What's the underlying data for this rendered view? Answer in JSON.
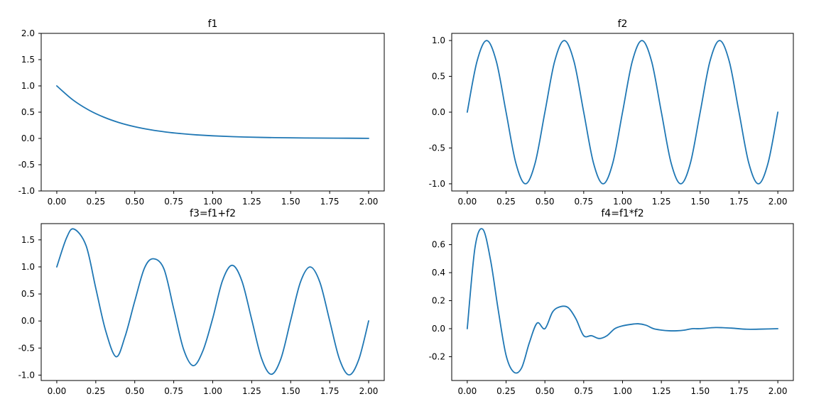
{
  "chart_data": [
    {
      "type": "line",
      "title": "f1",
      "xlabel": "",
      "ylabel": "",
      "xlim": [
        -0.1,
        2.1
      ],
      "ylim": [
        -1.0,
        2.0
      ],
      "xticks": [
        "0.00",
        "0.25",
        "0.50",
        "0.75",
        "1.00",
        "1.25",
        "1.50",
        "1.75",
        "2.00"
      ],
      "yticks": [
        "-1.0",
        "-0.5",
        "0.0",
        "0.5",
        "1.0",
        "1.5",
        "2.0"
      ],
      "grid": false,
      "color": "#1f77b4",
      "series": [
        {
          "x": [
            0.0,
            0.1,
            0.2,
            0.3,
            0.4,
            0.5,
            0.6,
            0.7,
            0.8,
            0.9,
            1.0,
            1.2,
            1.4,
            1.6,
            1.8,
            2.0
          ],
          "y": [
            1.0,
            0.741,
            0.549,
            0.407,
            0.301,
            0.223,
            0.165,
            0.122,
            0.091,
            0.067,
            0.05,
            0.027,
            0.015,
            0.008,
            0.005,
            0.002
          ]
        }
      ]
    },
    {
      "type": "line",
      "title": "f2",
      "xlabel": "",
      "ylabel": "",
      "xlim": [
        -0.1,
        2.1
      ],
      "ylim": [
        -1.1,
        1.1
      ],
      "xticks": [
        "0.00",
        "0.25",
        "0.50",
        "0.75",
        "1.00",
        "1.25",
        "1.50",
        "1.75",
        "2.00"
      ],
      "yticks": [
        "-1.0",
        "-0.5",
        "0.0",
        "0.5",
        "1.0"
      ],
      "grid": false,
      "color": "#1f77b4",
      "series": [
        {
          "x": [
            0.0,
            0.0625,
            0.125,
            0.1875,
            0.25,
            0.3125,
            0.375,
            0.4375,
            0.5,
            0.5625,
            0.625,
            0.6875,
            0.75,
            0.8125,
            0.875,
            0.9375,
            1.0,
            1.0625,
            1.125,
            1.1875,
            1.25,
            1.3125,
            1.375,
            1.4375,
            1.5,
            1.5625,
            1.625,
            1.6875,
            1.75,
            1.8125,
            1.875,
            1.9375,
            2.0
          ],
          "y": [
            0.0,
            0.707,
            1.0,
            0.707,
            0.0,
            -0.707,
            -1.0,
            -0.707,
            0.0,
            0.707,
            1.0,
            0.707,
            0.0,
            -0.707,
            -1.0,
            -0.707,
            0.0,
            0.707,
            1.0,
            0.707,
            0.0,
            -0.707,
            -1.0,
            -0.707,
            0.0,
            0.707,
            1.0,
            0.707,
            0.0,
            -0.707,
            -1.0,
            -0.707,
            0.0
          ]
        }
      ]
    },
    {
      "type": "line",
      "title": "f3=f1+f2",
      "xlabel": "",
      "ylabel": "",
      "xlim": [
        -0.1,
        2.1
      ],
      "ylim": [
        -1.1,
        1.8
      ],
      "xticks": [
        "0.00",
        "0.25",
        "0.50",
        "0.75",
        "1.00",
        "1.25",
        "1.50",
        "1.75",
        "2.00"
      ],
      "yticks": [
        "-1.0",
        "-0.5",
        "0.0",
        "0.5",
        "1.0",
        "1.5"
      ],
      "grid": false,
      "color": "#1f77b4",
      "series": [
        {
          "x": [
            0.0,
            0.0625,
            0.11,
            0.1875,
            0.25,
            0.3125,
            0.38,
            0.4375,
            0.5,
            0.5625,
            0.62,
            0.6875,
            0.75,
            0.8125,
            0.875,
            0.9375,
            1.0,
            1.0625,
            1.125,
            1.1875,
            1.25,
            1.3125,
            1.375,
            1.4375,
            1.5,
            1.5625,
            1.625,
            1.6875,
            1.75,
            1.8125,
            1.875,
            1.9375,
            2.0
          ],
          "y": [
            1.0,
            1.536,
            1.7,
            1.395,
            0.607,
            -0.171,
            -0.66,
            -0.29,
            0.368,
            0.98,
            1.15,
            0.96,
            0.223,
            -0.518,
            -0.826,
            -0.548,
            0.05,
            0.745,
            1.03,
            0.737,
            0.027,
            -0.686,
            -0.985,
            -0.695,
            0.015,
            0.719,
            1.0,
            0.714,
            0.005,
            -0.703,
            -0.997,
            -0.705,
            0.002
          ]
        }
      ]
    },
    {
      "type": "line",
      "title": "f4=f1*f2",
      "xlabel": "",
      "ylabel": "",
      "xlim": [
        -0.1,
        2.1
      ],
      "ylim": [
        -0.37,
        0.75
      ],
      "xticks": [
        "0.00",
        "0.25",
        "0.50",
        "0.75",
        "1.00",
        "1.25",
        "1.50",
        "1.75",
        "2.00"
      ],
      "yticks": [
        "-0.2",
        "0.0",
        "0.2",
        "0.4",
        "0.6"
      ],
      "grid": false,
      "color": "#1f77b4",
      "series": [
        {
          "x": [
            0.0,
            0.05,
            0.1,
            0.15,
            0.2,
            0.25,
            0.3,
            0.35,
            0.4,
            0.45,
            0.5,
            0.55,
            0.6,
            0.65,
            0.7,
            0.75,
            0.8,
            0.85,
            0.9,
            0.95,
            1.0,
            1.05,
            1.1,
            1.15,
            1.2,
            1.25,
            1.3,
            1.35,
            1.4,
            1.45,
            1.5,
            1.6,
            1.7,
            1.8,
            1.9,
            2.0
          ],
          "y": [
            0.0,
            0.58,
            0.71,
            0.49,
            0.13,
            -0.19,
            -0.31,
            -0.28,
            -0.1,
            0.04,
            0.0,
            0.12,
            0.157,
            0.15,
            0.07,
            -0.05,
            -0.05,
            -0.07,
            -0.05,
            0.0,
            0.02,
            0.03,
            0.035,
            0.025,
            0.0,
            -0.01,
            -0.015,
            -0.015,
            -0.01,
            0.0,
            0.0,
            0.008,
            0.004,
            -0.004,
            -0.003,
            0.0
          ]
        }
      ]
    }
  ]
}
